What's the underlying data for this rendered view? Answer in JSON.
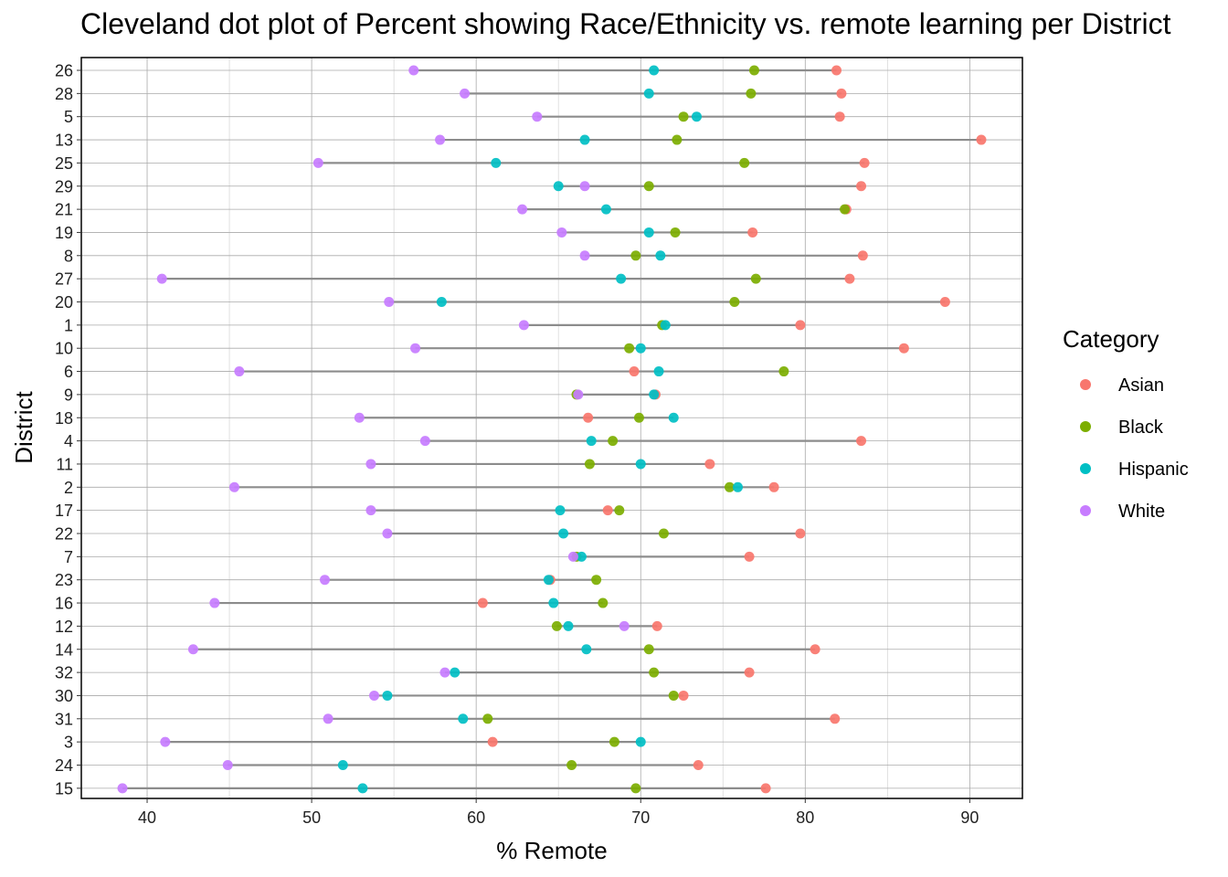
{
  "chart_data": {
    "type": "scatter",
    "title": "Cleveland dot plot of Percent showing Race/Ethnicity vs. remote learning per District",
    "xlabel": "% Remote",
    "ylabel": "District",
    "xlim": [
      36,
      93.2
    ],
    "xticks": [
      40,
      50,
      60,
      70,
      80,
      90
    ],
    "grid": true,
    "legend": {
      "title": "Category",
      "position": "right"
    },
    "categories": [
      "26",
      "28",
      "5",
      "13",
      "25",
      "29",
      "21",
      "19",
      "8",
      "27",
      "20",
      "1",
      "10",
      "6",
      "9",
      "18",
      "4",
      "11",
      "2",
      "17",
      "22",
      "7",
      "23",
      "16",
      "12",
      "14",
      "32",
      "30",
      "31",
      "3",
      "24",
      "15"
    ],
    "series": [
      {
        "name": "Asian",
        "color": "#F8766D",
        "values": [
          81.9,
          82.2,
          82.1,
          90.7,
          83.6,
          83.4,
          82.5,
          76.8,
          83.5,
          82.7,
          88.5,
          79.7,
          86.0,
          69.6,
          70.9,
          66.8,
          83.4,
          74.2,
          78.1,
          68.0,
          79.7,
          76.6,
          64.5,
          60.4,
          71.0,
          80.6,
          76.6,
          72.6,
          81.8,
          61.0,
          73.5,
          77.6
        ]
      },
      {
        "name": "Black",
        "color": "#7CAE00",
        "values": [
          76.9,
          76.7,
          72.6,
          72.2,
          76.3,
          70.5,
          82.4,
          72.1,
          69.7,
          77.0,
          75.7,
          71.3,
          69.3,
          78.7,
          66.1,
          69.9,
          68.3,
          66.9,
          75.4,
          68.7,
          71.4,
          66.1,
          67.3,
          67.7,
          64.9,
          70.5,
          70.8,
          72.0,
          60.7,
          68.4,
          65.8,
          69.7
        ]
      },
      {
        "name": "Hispanic",
        "color": "#00BFC4",
        "values": [
          70.8,
          70.5,
          73.4,
          66.6,
          61.2,
          65.0,
          67.9,
          70.5,
          71.2,
          68.8,
          57.9,
          71.5,
          70.0,
          71.1,
          70.8,
          72.0,
          67.0,
          70.0,
          75.9,
          65.1,
          65.3,
          66.4,
          64.4,
          64.7,
          65.6,
          66.7,
          58.7,
          54.6,
          59.2,
          70.0,
          51.9,
          53.1
        ]
      },
      {
        "name": "White",
        "color": "#C77CFF",
        "values": [
          56.2,
          59.3,
          63.7,
          57.8,
          50.4,
          66.6,
          62.8,
          65.2,
          66.6,
          40.9,
          54.7,
          62.9,
          56.3,
          45.6,
          66.2,
          52.9,
          56.9,
          53.6,
          45.3,
          53.6,
          54.6,
          65.9,
          50.8,
          44.1,
          69.0,
          42.8,
          58.1,
          53.8,
          51.0,
          41.1,
          44.9,
          38.5
        ]
      }
    ]
  }
}
